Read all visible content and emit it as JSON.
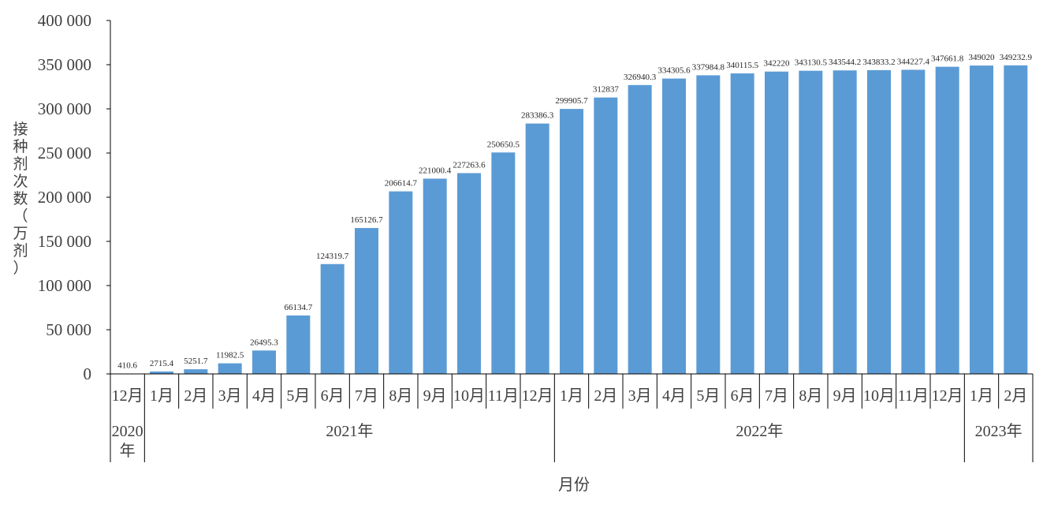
{
  "chart_data": {
    "type": "bar",
    "title": "",
    "ylabel": "接种剂次数（万剂）",
    "xlabel": "月份",
    "ylim": [
      0,
      400000
    ],
    "yticks": [
      0,
      50000,
      100000,
      150000,
      200000,
      250000,
      300000,
      350000,
      400000
    ],
    "ytick_labels": [
      "0",
      "50 000",
      "100 000",
      "150 000",
      "200 000",
      "250 000",
      "300 000",
      "350 000",
      "400 000"
    ],
    "grid": false,
    "legend": null,
    "bar_color": "#5B9BD5",
    "categories": [
      "12月",
      "1月",
      "2月",
      "3月",
      "4月",
      "5月",
      "6月",
      "7月",
      "8月",
      "9月",
      "10月",
      "11月",
      "12月",
      "1月",
      "2月",
      "3月",
      "4月",
      "5月",
      "6月",
      "7月",
      "8月",
      "9月",
      "10月",
      "11月",
      "12月",
      "1月",
      "2月"
    ],
    "year_groups": [
      {
        "label": "2020年",
        "start": 0,
        "count": 1
      },
      {
        "label": "2021年",
        "start": 1,
        "count": 12
      },
      {
        "label": "2022年",
        "start": 13,
        "count": 12
      },
      {
        "label": "2023年",
        "start": 25,
        "count": 2
      }
    ],
    "values": [
      410.6,
      2715.4,
      5251.7,
      11982.5,
      26495.3,
      66134.7,
      124319.7,
      165126.7,
      206614.7,
      221000.4,
      227263.6,
      250650.5,
      283386.3,
      299905.7,
      312837,
      326940.3,
      334305.6,
      337984.8,
      340115.5,
      342220,
      343130.5,
      343544.2,
      343833.2,
      344227.4,
      347661.8,
      349020,
      349232.9
    ],
    "value_labels": [
      "410.6",
      "2715.4",
      "5251.7",
      "11982.5",
      "26495.3",
      "66134.7",
      "124319.7",
      "165126.7",
      "206614.7",
      "221000.4",
      "227263.6",
      "250650.5",
      "283386.3",
      "299905.7",
      "312837",
      "326940.3",
      "334305.6",
      "337984.8",
      "340115.5",
      "342220",
      "343130.5",
      "343544.2",
      "343833.2",
      "344227.4",
      "347661.8",
      "349020",
      "349232.9"
    ]
  }
}
